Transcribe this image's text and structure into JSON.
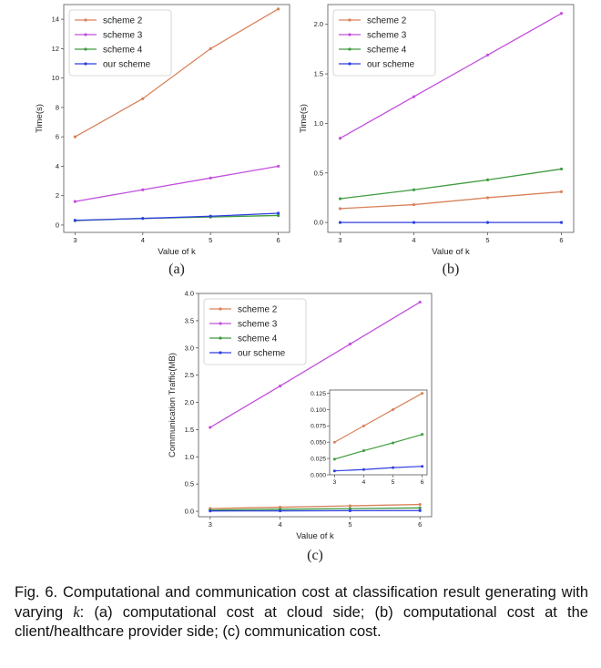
{
  "chart_data": [
    {
      "type": "line",
      "panel_label": "(a)",
      "x": [
        3,
        4,
        5,
        6
      ],
      "xlabel": "Value of k",
      "ylabel": "Time(s)",
      "ylim": [
        -0.5,
        15
      ],
      "yticks": [
        0,
        2,
        4,
        6,
        8,
        10,
        12,
        14
      ],
      "ytick_labels": [
        "0",
        "2",
        "4",
        "6",
        "8",
        "10",
        "12",
        "14"
      ],
      "legend_position": "top-left",
      "series": [
        {
          "name": "scheme 2",
          "color": "#d9825b",
          "values": [
            6.0,
            8.6,
            12.0,
            14.7
          ]
        },
        {
          "name": "scheme 3",
          "color": "#c24fdd",
          "values": [
            1.6,
            2.4,
            3.2,
            4.0
          ]
        },
        {
          "name": "scheme 4",
          "color": "#3f9b3f",
          "values": [
            0.3,
            0.45,
            0.55,
            0.65
          ]
        },
        {
          "name": "our scheme",
          "color": "#2f3ee0",
          "values": [
            0.32,
            0.45,
            0.6,
            0.8
          ]
        }
      ]
    },
    {
      "type": "line",
      "panel_label": "(b)",
      "x": [
        3,
        4,
        5,
        6
      ],
      "xlabel": "Value of k",
      "ylabel": "Time(s)",
      "ylim": [
        -0.1,
        2.2
      ],
      "yticks": [
        0.0,
        0.5,
        1.0,
        1.5,
        2.0
      ],
      "ytick_labels": [
        "0.0",
        "0.5",
        "1.0",
        "1.5",
        "2.0"
      ],
      "legend_position": "top-left",
      "series": [
        {
          "name": "scheme 2",
          "color": "#d9825b",
          "values": [
            0.14,
            0.18,
            0.25,
            0.31
          ]
        },
        {
          "name": "scheme 3",
          "color": "#c24fdd",
          "values": [
            0.85,
            1.27,
            1.69,
            2.11
          ]
        },
        {
          "name": "scheme 4",
          "color": "#3f9b3f",
          "values": [
            0.24,
            0.33,
            0.43,
            0.54
          ]
        },
        {
          "name": "our scheme",
          "color": "#2f3ee0",
          "values": [
            0.0,
            0.0,
            0.0,
            0.0
          ]
        }
      ]
    },
    {
      "type": "line",
      "panel_label": "(c)",
      "x": [
        3,
        4,
        5,
        6
      ],
      "xlabel": "Value of k",
      "ylabel": "Communication Traffic(MB)",
      "ylim": [
        -0.1,
        4.0
      ],
      "yticks": [
        0.0,
        0.5,
        1.0,
        1.5,
        2.0,
        2.5,
        3.0,
        3.5,
        4.0
      ],
      "ytick_labels": [
        "0.0",
        "0.5",
        "1.0",
        "1.5",
        "2.0",
        "2.5",
        "3.0",
        "3.5",
        "4.0"
      ],
      "legend_position": "top-left",
      "series": [
        {
          "name": "scheme 2",
          "color": "#d9825b",
          "values": [
            0.05,
            0.075,
            0.1,
            0.125
          ]
        },
        {
          "name": "scheme 3",
          "color": "#c24fdd",
          "values": [
            1.54,
            2.3,
            3.07,
            3.84
          ]
        },
        {
          "name": "scheme 4",
          "color": "#3f9b3f",
          "values": [
            0.024,
            0.037,
            0.049,
            0.062
          ]
        },
        {
          "name": "our scheme",
          "color": "#2f3ee0",
          "values": [
            0.006,
            0.008,
            0.011,
            0.013
          ]
        }
      ],
      "inset": {
        "ylim": [
          0.0,
          0.13
        ],
        "yticks": [
          0.0,
          0.025,
          0.05,
          0.075,
          0.1,
          0.125
        ],
        "ytick_labels": [
          "0.000",
          "0.025",
          "0.050",
          "0.075",
          "0.100",
          "0.125"
        ],
        "series_names": [
          "scheme 2",
          "scheme 4",
          "our scheme"
        ]
      }
    }
  ],
  "caption": {
    "prefix": "Fig. 6. Computational and communication cost at classification result generating with varying ",
    "variable": "k",
    "suffix": ": (a) computational cost at cloud side; (b) computational cost at the client/healthcare provider side; (c) communication cost."
  }
}
